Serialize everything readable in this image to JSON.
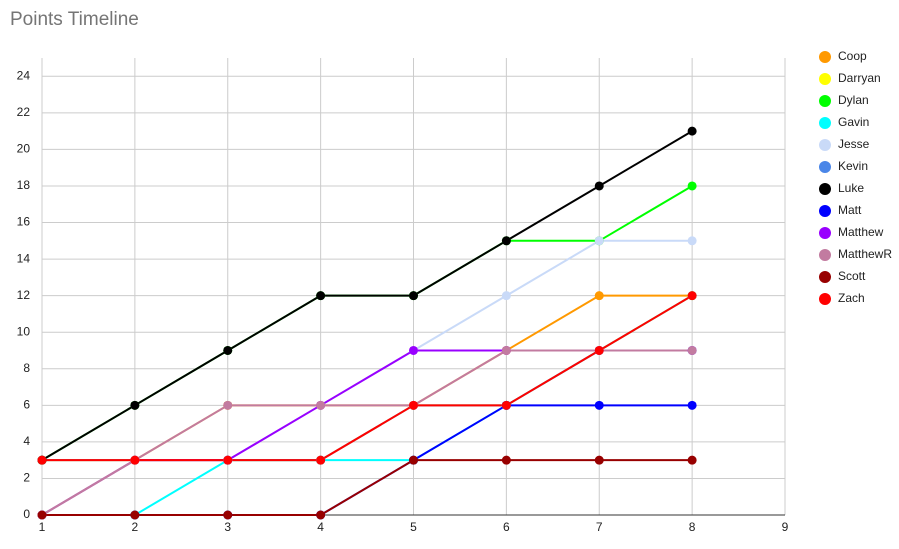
{
  "chart_data": {
    "type": "line",
    "title": "Points Timeline",
    "x": [
      1,
      2,
      3,
      4,
      5,
      6,
      7,
      8
    ],
    "xlim": [
      1,
      9
    ],
    "xticks": [
      1,
      2,
      3,
      4,
      5,
      6,
      7,
      8,
      9
    ],
    "ylim": [
      0,
      25
    ],
    "yticks": [
      0,
      2,
      4,
      6,
      8,
      10,
      12,
      14,
      16,
      18,
      20,
      22,
      24
    ],
    "grid": true,
    "legend": "right",
    "series": [
      {
        "name": "Coop",
        "color": "#ff9900",
        "values": [
          0,
          3,
          6,
          6,
          6,
          9,
          12,
          12
        ]
      },
      {
        "name": "Darryan",
        "color": "#ffff00",
        "values": [
          3,
          3,
          3,
          3,
          6,
          6,
          9,
          12
        ]
      },
      {
        "name": "Dylan",
        "color": "#00ff00",
        "values": [
          3,
          6,
          9,
          12,
          12,
          15,
          15,
          18
        ]
      },
      {
        "name": "Gavin",
        "color": "#00ffff",
        "values": [
          0,
          0,
          3,
          3,
          3,
          6,
          9,
          12
        ]
      },
      {
        "name": "Jesse",
        "color": "#c9daf8",
        "values": [
          0,
          3,
          3,
          6,
          9,
          12,
          15,
          15
        ]
      },
      {
        "name": "Kevin",
        "color": "#4a86e8",
        "values": [
          3,
          3,
          3,
          3,
          6,
          6,
          9,
          9
        ]
      },
      {
        "name": "Luke",
        "color": "#000000",
        "values": [
          3,
          6,
          9,
          12,
          12,
          15,
          18,
          21
        ]
      },
      {
        "name": "Matt",
        "color": "#0000ff",
        "values": [
          0,
          0,
          0,
          0,
          3,
          6,
          6,
          6
        ]
      },
      {
        "name": "Matthew",
        "color": "#9900ff",
        "values": [
          0,
          3,
          3,
          6,
          9,
          9,
          9,
          9
        ]
      },
      {
        "name": "MatthewR",
        "color": "#c27ba0",
        "values": [
          0,
          3,
          6,
          6,
          6,
          9,
          9,
          9
        ]
      },
      {
        "name": "Scott",
        "color": "#980000",
        "values": [
          0,
          0,
          0,
          0,
          3,
          3,
          3,
          3
        ]
      },
      {
        "name": "Zach",
        "color": "#ff0000",
        "values": [
          3,
          3,
          3,
          3,
          6,
          6,
          9,
          12
        ]
      }
    ]
  }
}
